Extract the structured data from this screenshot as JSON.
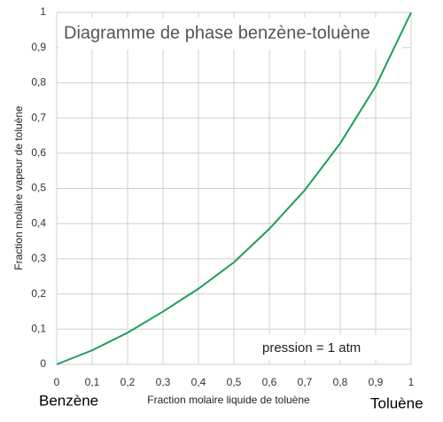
{
  "chart_data": {
    "type": "line",
    "title": "Diagramme de phase benzène-toluène",
    "x_label": "Fraction molaire liquide de toluène",
    "y_label": "Fraction molaire vapeur de toluène",
    "annotation": "pression = 1 atm",
    "left_label": "Benzène",
    "right_label": "Toluène",
    "x": [
      0,
      0.1,
      0.2,
      0.3,
      0.4,
      0.5,
      0.6,
      0.7,
      0.8,
      0.9,
      1
    ],
    "values": [
      0,
      0.04,
      0.09,
      0.15,
      0.215,
      0.29,
      0.385,
      0.495,
      0.628,
      0.79,
      1
    ],
    "color": "#1e9e5a",
    "xlim": [
      0,
      1
    ],
    "ylim": [
      0,
      1
    ],
    "xticks": [
      0,
      {
        "value": 0.1,
        "label": "0,1"
      },
      {
        "value": 0.2,
        "label": "0,2"
      },
      {
        "value": 0.3,
        "label": "0,3"
      },
      {
        "value": 0.4,
        "label": "0,4"
      },
      {
        "value": 0.5,
        "label": "0,5"
      },
      {
        "value": 0.6,
        "label": "0,6"
      },
      {
        "value": 0.7,
        "label": "0,7"
      },
      {
        "value": 0.8,
        "label": "0,8"
      },
      {
        "value": 0.9,
        "label": "0,9"
      },
      1
    ],
    "yticks": [
      0,
      {
        "value": 0.1,
        "label": "0,1"
      },
      {
        "value": 0.2,
        "label": "0,2"
      },
      {
        "value": 0.3,
        "label": "0,3"
      },
      {
        "value": 0.4,
        "label": "0,4"
      },
      {
        "value": 0.5,
        "label": "0,5"
      },
      {
        "value": 0.6,
        "label": "0,6"
      },
      {
        "value": 0.7,
        "label": "0,7"
      },
      {
        "value": 0.8,
        "label": "0,8"
      },
      {
        "value": 0.9,
        "label": "0,9"
      },
      1
    ],
    "grid": true
  }
}
